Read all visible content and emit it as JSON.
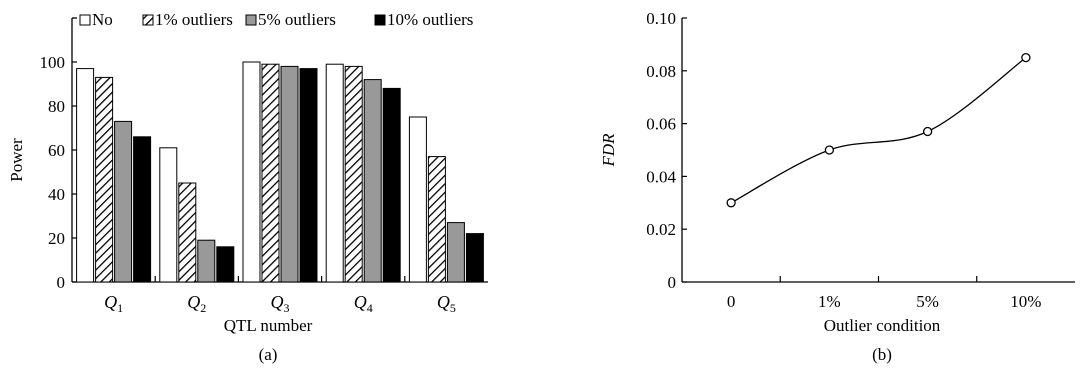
{
  "chart_data": [
    {
      "type": "bar",
      "panel_label": "(a)",
      "xlabel": "QTL number",
      "ylabel": "Power",
      "ylim": [
        0,
        120
      ],
      "yticks": [
        0,
        20,
        40,
        60,
        80,
        100
      ],
      "categories": [
        {
          "main": "Q",
          "sub": "1"
        },
        {
          "main": "Q",
          "sub": "2"
        },
        {
          "main": "Q",
          "sub": "3"
        },
        {
          "main": "Q",
          "sub": "4"
        },
        {
          "main": "Q",
          "sub": "5"
        }
      ],
      "legend_position": "top",
      "series": [
        {
          "name": "No",
          "fill": "white",
          "values": [
            97,
            61,
            100,
            99,
            75
          ]
        },
        {
          "name": "1% outliers",
          "fill": "hatched",
          "values": [
            93,
            45,
            99,
            98,
            57
          ]
        },
        {
          "name": "5% outliers",
          "fill": "#999999",
          "values": [
            73,
            19,
            98,
            92,
            27
          ]
        },
        {
          "name": "10% outliers",
          "fill": "#000000",
          "values": [
            66,
            16,
            97,
            88,
            22
          ]
        }
      ]
    },
    {
      "type": "line",
      "panel_label": "(b)",
      "xlabel": "Outlier condition",
      "ylabel": "FDR",
      "ylim": [
        0,
        0.1
      ],
      "yticks": [
        "0",
        "0.02",
        "0.04",
        "0.06",
        "0.08",
        "0.10"
      ],
      "categories": [
        "0",
        "1%",
        "5%",
        "10%"
      ],
      "series": [
        {
          "values": [
            0.03,
            0.05,
            0.057,
            0.085
          ]
        }
      ]
    }
  ]
}
